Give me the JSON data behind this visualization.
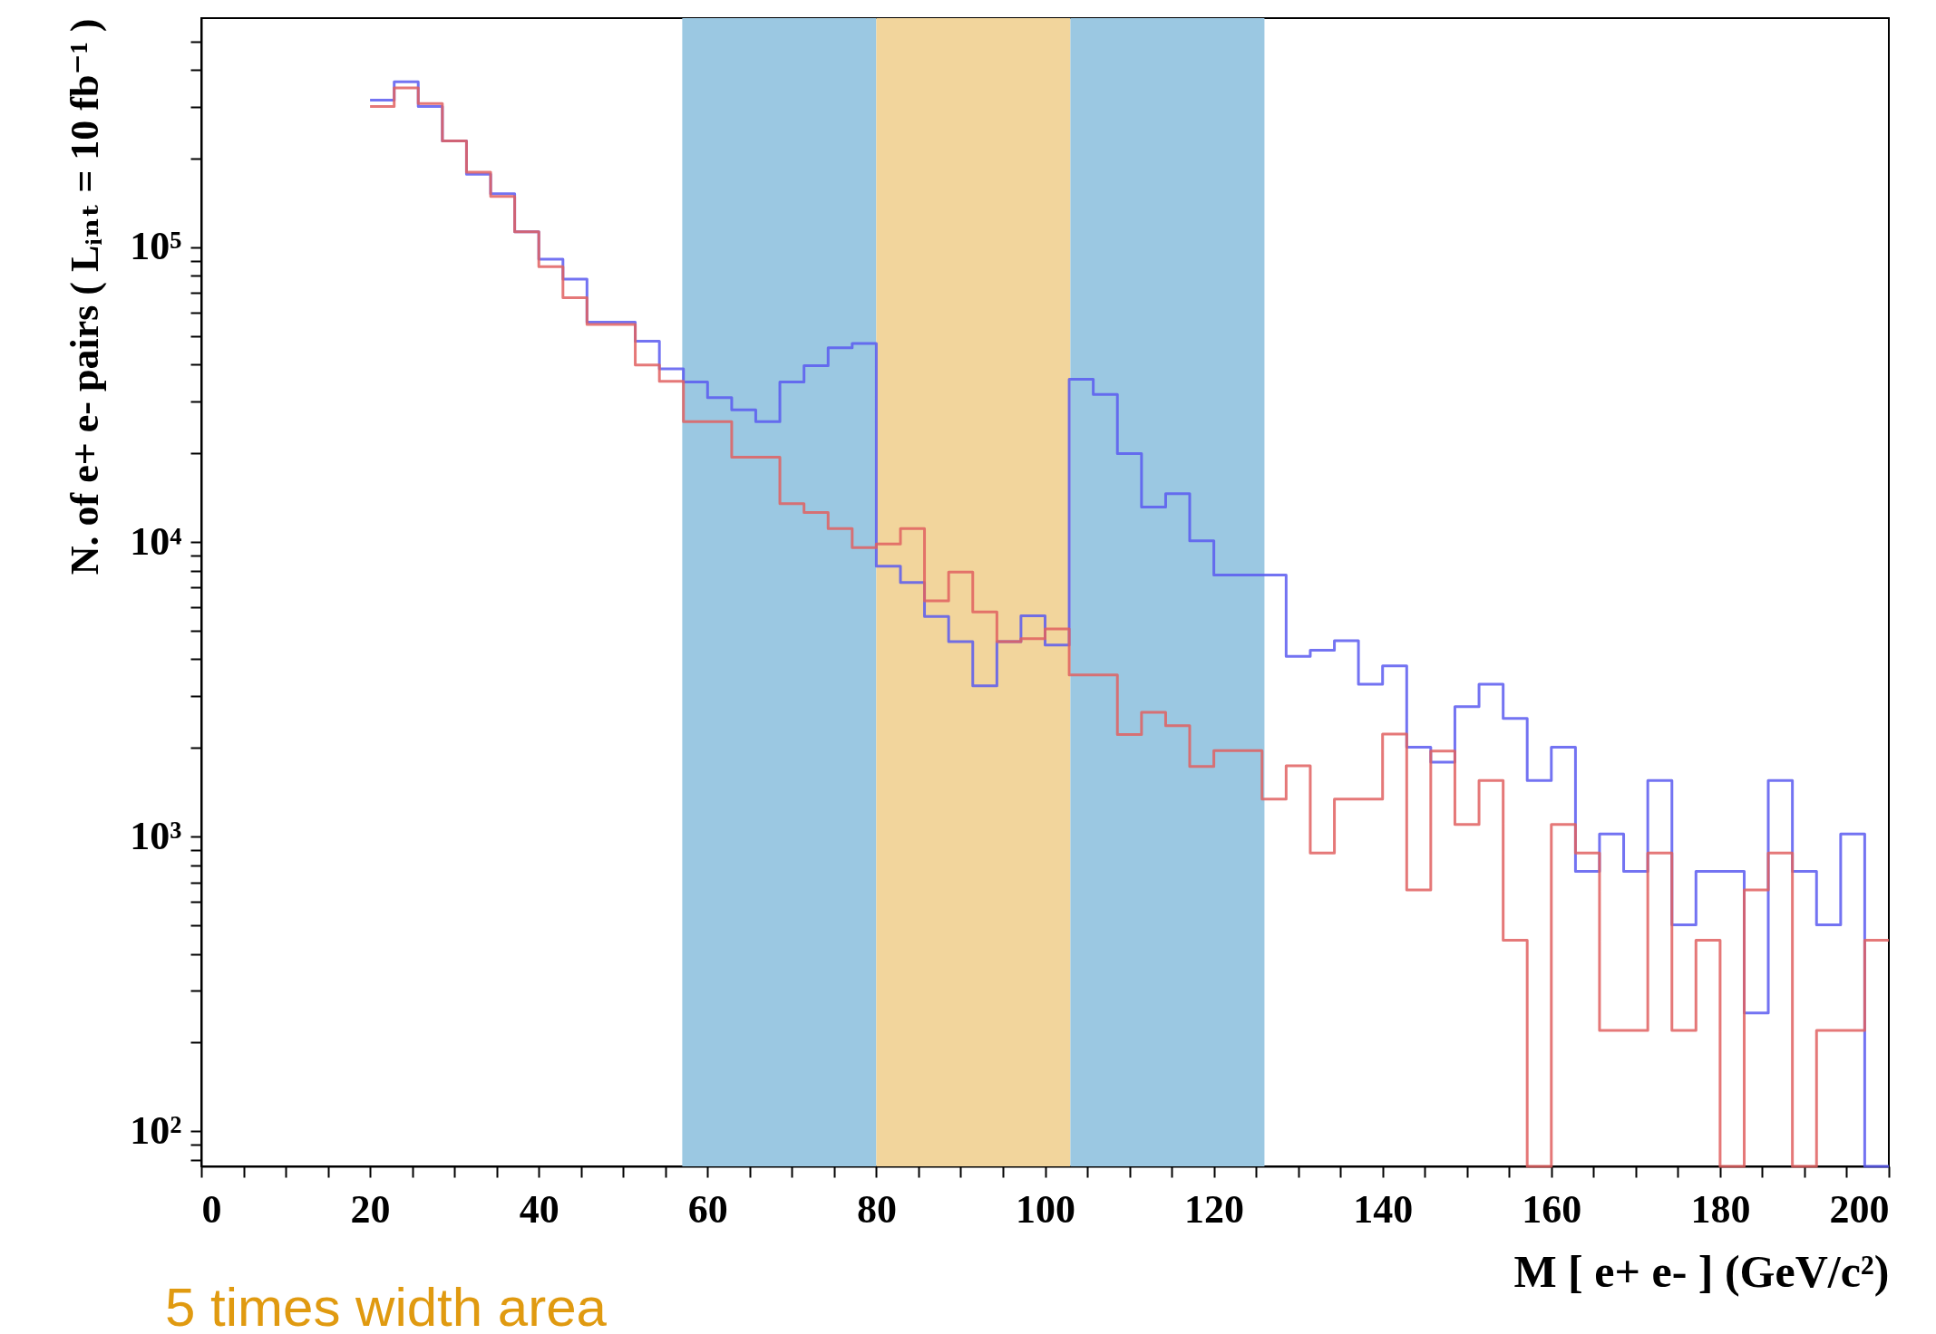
{
  "chart_data": {
    "type": "histogram",
    "xlabel": "M [ e+ e- ] (GeV/c²)",
    "ylabel": "N. of e+ e- pairs  ( Lᵢₙₜ = 10 fb⁻¹ )",
    "bins": [
      20,
      22.86,
      25.71,
      28.57,
      31.43,
      34.29,
      37.14,
      40,
      42.86,
      45.71,
      48.57,
      51.43,
      54.29,
      57.14,
      60,
      62.86,
      65.71,
      68.57,
      71.43,
      74.29,
      77.14,
      80,
      82.86,
      85.71,
      88.57,
      91.43,
      94.29,
      97.14,
      100,
      102.86,
      105.71,
      108.57,
      111.43,
      114.29,
      117.14,
      120,
      122.86,
      125.71,
      128.57,
      131.43,
      134.29,
      137.14,
      140,
      142.86,
      145.71,
      148.57,
      151.43,
      154.29,
      157.14,
      160,
      162.86,
      165.71,
      168.57,
      171.43,
      174.29,
      177.14,
      180,
      182.86,
      185.71,
      188.57,
      191.43,
      194.29,
      197.14,
      200
    ],
    "series": [
      {
        "color": "#5a5af0",
        "values": [
          316000,
          365000,
          301000,
          230000,
          177000,
          152000,
          113000,
          91200,
          78000,
          55700,
          55700,
          48000,
          38700,
          34900,
          30900,
          28100,
          25600,
          34900,
          39700,
          45600,
          47200,
          8280,
          7290,
          5590,
          4590,
          3250,
          4590,
          5620,
          4470,
          35700,
          31700,
          19950,
          13150,
          14600,
          10100,
          7730,
          7730,
          7730,
          4090,
          4290,
          4620,
          3290,
          3800,
          2010,
          1790,
          2760,
          3290,
          2520,
          1550,
          2010,
          762,
          1020,
          762,
          1550,
          502,
          762,
          762,
          252,
          1550,
          762,
          502,
          1020,
          null
        ]
      },
      {
        "color": "#e06060",
        "values": [
          301000,
          348000,
          308000,
          230000,
          180000,
          149000,
          113000,
          86000,
          67500,
          54800,
          54800,
          39900,
          35100,
          25600,
          25600,
          19400,
          19400,
          13500,
          12600,
          11100,
          9570,
          9850,
          11100,
          6310,
          7910,
          5790,
          4590,
          4700,
          5070,
          3540,
          3540,
          2220,
          2640,
          2380,
          1730,
          1960,
          1960,
          1340,
          1740,
          880,
          1340,
          1340,
          2230,
          659,
          1950,
          1100,
          1550,
          445,
          null,
          1100,
          880,
          220,
          220,
          880,
          220,
          445,
          null,
          659,
          880,
          null,
          220,
          220,
          445
        ]
      }
    ],
    "xlim": [
      0,
      200
    ],
    "xticks": [
      0,
      {
        "value": 5,
        "label": null
      },
      {
        "value": 10,
        "label": null
      },
      {
        "value": 15,
        "label": null
      },
      20,
      {
        "value": 25,
        "label": null
      },
      {
        "value": 30,
        "label": null
      },
      {
        "value": 35,
        "label": null
      },
      40,
      {
        "value": 45,
        "label": null
      },
      {
        "value": 50,
        "label": null
      },
      {
        "value": 55,
        "label": null
      },
      60,
      {
        "value": 65,
        "label": null
      },
      {
        "value": 70,
        "label": null
      },
      {
        "value": 75,
        "label": null
      },
      80,
      {
        "value": 85,
        "label": null
      },
      {
        "value": 90,
        "label": null
      },
      {
        "value": 95,
        "label": null
      },
      100,
      {
        "value": 105,
        "label": null
      },
      {
        "value": 110,
        "label": null
      },
      {
        "value": 115,
        "label": null
      },
      120,
      {
        "value": 125,
        "label": null
      },
      {
        "value": 130,
        "label": null
      },
      {
        "value": 135,
        "label": null
      },
      140,
      {
        "value": 145,
        "label": null
      },
      {
        "value": 150,
        "label": null
      },
      {
        "value": 155,
        "label": null
      },
      160,
      {
        "value": 165,
        "label": null
      },
      {
        "value": 170,
        "label": null
      },
      {
        "value": 175,
        "label": null
      },
      180,
      {
        "value": 185,
        "label": null
      },
      {
        "value": 190,
        "label": null
      },
      {
        "value": 195,
        "label": null
      },
      200
    ],
    "ylim": [
      76,
      600000
    ],
    "yticks": [
      {
        "value": 80,
        "label": null
      },
      {
        "value": 90,
        "label": null
      },
      {
        "value": 100,
        "label": "10²"
      },
      {
        "value": 200,
        "label": null
      },
      {
        "value": 300,
        "label": null
      },
      {
        "value": 400,
        "label": null
      },
      {
        "value": 500,
        "label": null
      },
      {
        "value": 600,
        "label": null
      },
      {
        "value": 700,
        "label": null
      },
      {
        "value": 800,
        "label": null
      },
      {
        "value": 900,
        "label": null
      },
      {
        "value": 1000,
        "label": "10³"
      },
      {
        "value": 2000,
        "label": null
      },
      {
        "value": 3000,
        "label": null
      },
      {
        "value": 4000,
        "label": null
      },
      {
        "value": 5000,
        "label": null
      },
      {
        "value": 6000,
        "label": null
      },
      {
        "value": 7000,
        "label": null
      },
      {
        "value": 8000,
        "label": null
      },
      {
        "value": 9000,
        "label": null
      },
      {
        "value": 10000,
        "label": "10⁴"
      },
      {
        "value": 20000,
        "label": null
      },
      {
        "value": 30000,
        "label": null
      },
      {
        "value": 40000,
        "label": null
      },
      {
        "value": 50000,
        "label": null
      },
      {
        "value": 60000,
        "label": null
      },
      {
        "value": 70000,
        "label": null
      },
      {
        "value": 80000,
        "label": null
      },
      {
        "value": 90000,
        "label": null
      },
      {
        "value": 100000,
        "label": "10⁵"
      },
      {
        "value": 200000,
        "label": null
      },
      {
        "value": 300000,
        "label": null
      },
      {
        "value": 400000,
        "label": null
      },
      {
        "value": 500000,
        "label": null
      }
    ],
    "log": true,
    "bands": [
      {
        "axis": "x",
        "from": 57,
        "to": 80,
        "color": "#9bc8e2"
      },
      {
        "axis": "x",
        "from": 80,
        "to": 103,
        "color": "#f2d59c"
      },
      {
        "axis": "x",
        "from": 103,
        "to": 126,
        "color": "#9bc8e2"
      }
    ],
    "annotations": [
      "5 times width area"
    ]
  }
}
